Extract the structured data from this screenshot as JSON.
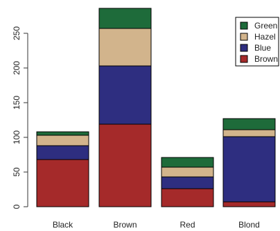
{
  "chart_data": {
    "type": "bar",
    "stacked": true,
    "categories": [
      "Black",
      "Brown",
      "Red",
      "Blond"
    ],
    "series": [
      {
        "name": "Brown",
        "color": "#A52A2A",
        "values": [
          68,
          119,
          26,
          7
        ]
      },
      {
        "name": "Blue",
        "color": "#2E2E80",
        "values": [
          20,
          84,
          17,
          94
        ]
      },
      {
        "name": "Hazel",
        "color": "#D2B48C",
        "values": [
          15,
          54,
          14,
          10
        ]
      },
      {
        "name": "Green",
        "color": "#1E6B3A",
        "values": [
          5,
          29,
          14,
          16
        ]
      }
    ],
    "ylim": [
      0,
      290
    ],
    "yticks": [
      0,
      50,
      100,
      150,
      200,
      250
    ],
    "legend": {
      "placement": "top-right",
      "order": [
        "Green",
        "Hazel",
        "Blue",
        "Brown"
      ]
    },
    "title": "",
    "xlabel": "",
    "ylabel": "",
    "grid": false
  }
}
